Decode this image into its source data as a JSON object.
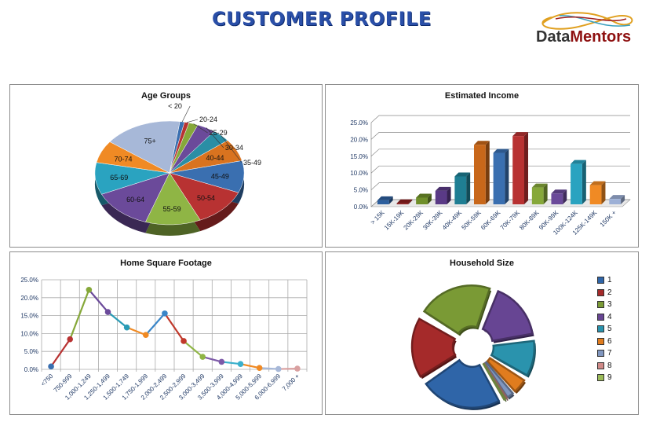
{
  "header": {
    "title": "CUSTOMER  PROFILE",
    "logo_text_a": "Data",
    "logo_text_b": "Mentors"
  },
  "colors": [
    "#3a6fb0",
    "#b83232",
    "#86a83a",
    "#6b4a9a",
    "#2a9bb5",
    "#f08a24",
    "#9db0d6",
    "#d99795",
    "#9bbb59"
  ],
  "chart_data": [
    {
      "type": "pie",
      "title": "Age Groups",
      "categories": [
        "< 20",
        "20-24",
        "25-29",
        "30-34",
        "35-49",
        "40-44",
        "45-49",
        "50-54",
        "55-59",
        "60-64",
        "65-69",
        "70-74",
        "75+"
      ],
      "values": [
        1,
        1,
        2,
        4,
        4,
        7,
        10,
        12,
        12,
        13,
        10,
        7,
        17
      ],
      "colors": [
        "#3a6fb0",
        "#b83232",
        "#86a83a",
        "#6b4a9a",
        "#2a8ea5",
        "#d9731f",
        "#3a6fb0",
        "#b83232",
        "#8fb545",
        "#6b4a9a",
        "#2aa3c0",
        "#f08a24",
        "#a7b8d8"
      ]
    },
    {
      "type": "bar",
      "title": "Estimated Income",
      "categories": [
        "> 15K",
        "15K-19K",
        "20K-29K",
        "30K-39K",
        "40K-49K",
        "50K-59K",
        "60K-69K",
        "70K-79K",
        "80K-89K",
        "90K-99K",
        "100K-124K",
        "125K-149K",
        "150K +"
      ],
      "values": [
        1.2,
        0.3,
        2.0,
        4.0,
        8.3,
        17.7,
        15.3,
        20.3,
        5.0,
        3.2,
        12.0,
        5.7,
        1.6
      ],
      "colors": [
        "#2d5f9e",
        "#8e1f1f",
        "#6f8f2a",
        "#5a3a86",
        "#1f7e93",
        "#c8671a",
        "#3a6fb0",
        "#b83232",
        "#86a83a",
        "#6b4a9a",
        "#2aa3c0",
        "#f08a24",
        "#9db0d6"
      ],
      "yticks": [
        "0.0%",
        "5.0%",
        "10.0%",
        "15.0%",
        "20.0%",
        "25.0%"
      ],
      "ylim": [
        0,
        25
      ],
      "grid": true
    },
    {
      "type": "line",
      "title": "Home Square Footage",
      "categories": [
        "<750",
        "750-999",
        "1,000-1,249",
        "1,250-1,499",
        "1,500-1,749",
        "1,750-1,999",
        "2,000-2,499",
        "2,500-2,999",
        "3,000-3,499",
        "3,500-3,999",
        "4,000-4,999",
        "5,000-5,999",
        "6,000-6,999",
        "7,000 +"
      ],
      "values": [
        0.8,
        8.4,
        22.2,
        16.0,
        11.7,
        9.6,
        15.6,
        7.9,
        3.5,
        2.1,
        1.5,
        0.4,
        0.1,
        0.2
      ],
      "colors": [
        "#3a6fb0",
        "#b83232",
        "#86a83a",
        "#6b4a9a",
        "#2a9bb5",
        "#f08a24",
        "#3a86c8",
        "#c0392b",
        "#8fb545",
        "#7d5aa8",
        "#3ab0cc",
        "#f08a24",
        "#a7b8d8",
        "#d9a0a0"
      ],
      "yticks": [
        "0.0%",
        "5.0%",
        "10.0%",
        "15.0%",
        "20.0%",
        "25.0%"
      ],
      "ylim": [
        0,
        25
      ],
      "grid": true
    },
    {
      "type": "pie",
      "title": "Household Size",
      "categories": [
        "1",
        "2",
        "3",
        "4",
        "5",
        "6",
        "7",
        "8",
        "9"
      ],
      "values": [
        24,
        18,
        22,
        17,
        11,
        5,
        2,
        0.5,
        0.5
      ],
      "colors": [
        "#2f65a8",
        "#a52a2a",
        "#7a9a35",
        "#674593",
        "#2a93ad",
        "#e07c1e",
        "#8096bf",
        "#d08a88",
        "#9bbb59"
      ],
      "legend": "right"
    }
  ]
}
